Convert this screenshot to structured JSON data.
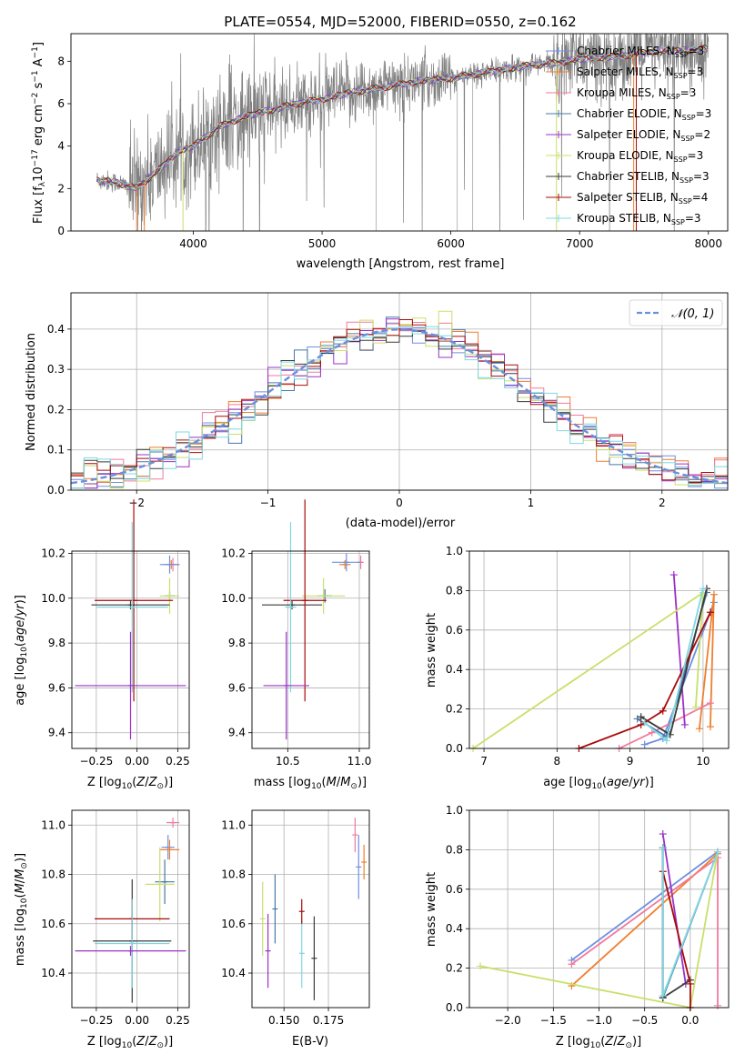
{
  "title": "PLATE=0554, MJD=52000, FIBERID=0550, z=0.162",
  "colors": {
    "grid": "#b0b0b0",
    "data": "#808080",
    "series": [
      "#6f8fe0",
      "#ef7f2e",
      "#f07a9c",
      "#4a78a8",
      "#9b30c8",
      "#c8e06a",
      "#3a3a3a",
      "#a80a0a",
      "#7fd8e0"
    ]
  },
  "spectrum": {
    "ylabel": "Flux [f",
    "ylabel_sub": "λ",
    "ylabel_rest": "10",
    "ylabel_sup": "−17",
    "ylabel_units": " erg cm",
    "ylabel_sup2": "−2",
    "ylabel_units2": " s",
    "ylabel_sup3": "−1",
    "ylabel_units3": " A",
    "ylabel_sup4": "−1",
    "ylabel_end": "]",
    "xlabel": "wavelength [Angstrom, rest frame]",
    "legend": [
      {
        "name": "Chabrier MILES",
        "n": "3"
      },
      {
        "name": "Salpeter MILES",
        "n": "3"
      },
      {
        "name": "Kroupa MILES",
        "n": "3"
      },
      {
        "name": "Chabrier ELODIE",
        "n": "3"
      },
      {
        "name": "Salpeter ELODIE",
        "n": "2"
      },
      {
        "name": "Kroupa ELODIE",
        "n": "3"
      },
      {
        "name": "Chabrier STELIB",
        "n": "3"
      },
      {
        "name": "Salpeter STELIB",
        "n": "4"
      },
      {
        "name": "Kroupa STELIB",
        "n": "3"
      }
    ],
    "legend_nssp": "N",
    "legend_nssp_sub": "SSP",
    "legend_eq": "="
  },
  "residuals": {
    "ylabel": "Normed distribution",
    "xlabel": "(data-model)/error",
    "legend": "𝒩(0, 1)"
  },
  "panels": {
    "age_z": {
      "xlabel": "Z [log",
      "ylabel": "age  [log",
      "sub": "10"
    },
    "age_mass": {
      "xlabel": "mass [log"
    },
    "weight_age": {
      "ylabel": "mass weight",
      "xlabel": "age  [log"
    },
    "mass_z": {
      "ylabel": "mass [log"
    },
    "mass_ebv": {
      "xlabel": "E(B-V)"
    },
    "weight_z": {
      "ylabel": "mass weight"
    }
  },
  "chart_data": [
    {
      "type": "line",
      "id": "spectrum",
      "title": "PLATE=0554, MJD=52000, FIBERID=0550, z=0.162",
      "xlabel": "wavelength [Angstrom, rest frame]",
      "xlim": [
        3050,
        8150
      ],
      "ylim": [
        0,
        9.3
      ],
      "xticks": [
        4000,
        5000,
        6000,
        7000,
        8000
      ],
      "yticks": [
        0,
        2,
        4,
        6,
        8
      ],
      "grid": false,
      "legend_position": "upper-right",
      "continuum": [
        [
          3250,
          2.4
        ],
        [
          3400,
          2.3
        ],
        [
          3550,
          2.0
        ],
        [
          3700,
          2.7
        ],
        [
          3800,
          3.3
        ],
        [
          3900,
          3.8
        ],
        [
          4000,
          4.0
        ],
        [
          4200,
          4.9
        ],
        [
          4400,
          5.4
        ],
        [
          4600,
          5.7
        ],
        [
          4800,
          6.0
        ],
        [
          5000,
          6.2
        ],
        [
          5200,
          6.5
        ],
        [
          5400,
          6.7
        ],
        [
          5600,
          6.9
        ],
        [
          5800,
          7.1
        ],
        [
          6000,
          7.2
        ],
        [
          6200,
          7.4
        ],
        [
          6400,
          7.6
        ],
        [
          6600,
          7.8
        ],
        [
          6800,
          7.9
        ],
        [
          7000,
          8.1
        ],
        [
          7200,
          8.2
        ],
        [
          7400,
          8.3
        ],
        [
          7600,
          8.5
        ],
        [
          7800,
          8.5
        ],
        [
          8000,
          8.6
        ]
      ],
      "data_range": [
        3250,
        8000
      ]
    },
    {
      "type": "line",
      "id": "residuals",
      "xlabel": "(data-model)/error",
      "ylabel": "Normed distribution",
      "xlim": [
        -2.5,
        2.5
      ],
      "ylim": [
        0,
        0.49
      ],
      "xticks": [
        -2,
        -1,
        0,
        1,
        2
      ],
      "yticks": [
        0.0,
        0.1,
        0.2,
        0.3,
        0.4
      ],
      "grid": true,
      "legend_position": "upper-right",
      "series": [
        {
          "name": "𝒩(0, 1)",
          "function": "normal_pdf",
          "mu": 0,
          "sigma": 1
        }
      ],
      "histogram_bin_width": 0.1
    },
    {
      "type": "scatter",
      "id": "age_vs_Z",
      "xlim": [
        -0.4,
        0.32
      ],
      "ylim": [
        9.33,
        10.21
      ],
      "xticks": [
        -0.25,
        0.0,
        0.25
      ],
      "yticks": [
        9.4,
        9.6,
        9.8,
        10.0,
        10.2
      ],
      "points": [
        {
          "c": 1,
          "x": 0.21,
          "y": 10.15,
          "xe": 0.05,
          "ye": 0.02
        },
        {
          "c": 2,
          "x": 0.22,
          "y": 10.15,
          "xe": 0.04,
          "ye": 0.03
        },
        {
          "c": 0,
          "x": 0.2,
          "y": 10.15,
          "xe": 0.06,
          "ye": 0.04
        },
        {
          "c": 3,
          "x": 0.2,
          "y": 10.01,
          "xe": 0.03,
          "ye": 0.02
        },
        {
          "c": 5,
          "x": 0.2,
          "y": 10.01,
          "xe": 0.06,
          "ye": 0.08
        },
        {
          "c": 6,
          "x": -0.04,
          "y": 9.97,
          "xe": 0.24,
          "ye": 0.02
        },
        {
          "c": 7,
          "x": -0.02,
          "y": 9.99,
          "xe": 0.24,
          "ye": 0.45
        },
        {
          "c": 8,
          "x": -0.03,
          "y": 9.96,
          "xe": 0.22,
          "ye": 0.38
        },
        {
          "c": 4,
          "x": -0.04,
          "y": 9.61,
          "xe": 0.34,
          "ye": 0.24
        }
      ]
    },
    {
      "type": "scatter",
      "id": "age_vs_mass",
      "xlim": [
        10.25,
        11.07
      ],
      "ylim": [
        9.33,
        10.21
      ],
      "xticks": [
        10.5,
        11.0
      ],
      "yticks": [
        9.4,
        9.6,
        9.8,
        10.0,
        10.2
      ],
      "points": [
        {
          "c": 2,
          "x": 11.01,
          "y": 10.16,
          "xe": 0.02,
          "ye": 0.03
        },
        {
          "c": 1,
          "x": 10.9,
          "y": 10.15,
          "xe": 0.04,
          "ye": 0.02
        },
        {
          "c": 0,
          "x": 10.91,
          "y": 10.16,
          "xe": 0.1,
          "ye": 0.04
        },
        {
          "c": 3,
          "x": 10.76,
          "y": 10.01,
          "xe": 0.05,
          "ye": 0.03
        },
        {
          "c": 5,
          "x": 10.75,
          "y": 10.01,
          "xe": 0.15,
          "ye": 0.08
        },
        {
          "c": 6,
          "x": 10.53,
          "y": 9.97,
          "xe": 0.21,
          "ye": 0.02
        },
        {
          "c": 7,
          "x": 10.62,
          "y": 9.99,
          "xe": 0.15,
          "ye": 0.45
        },
        {
          "c": 8,
          "x": 10.52,
          "y": 9.96,
          "xe": 0.04,
          "ye": 0.38
        },
        {
          "c": 4,
          "x": 10.49,
          "y": 9.61,
          "xe": 0.16,
          "ye": 0.24
        }
      ]
    },
    {
      "type": "line",
      "id": "weight_vs_age",
      "ylabel": "mass weight",
      "xlim": [
        6.8,
        10.35
      ],
      "ylim": [
        0,
        1
      ],
      "xticks": [
        7,
        8,
        9,
        10
      ],
      "yticks": [
        0.0,
        0.2,
        0.4,
        0.6,
        0.8,
        1.0
      ],
      "grid": true,
      "series": [
        {
          "c": 0,
          "points": [
            [
              9.2,
              0.02
            ],
            [
              9.45,
              0.05
            ],
            [
              10.15,
              0.74
            ]
          ]
        },
        {
          "c": 1,
          "points": [
            [
              9.95,
              0.1
            ],
            [
              10.15,
              0.78
            ],
            [
              10.1,
              0.11
            ]
          ]
        },
        {
          "c": 2,
          "points": [
            [
              8.85,
              0.0
            ],
            [
              9.3,
              0.08
            ],
            [
              10.1,
              0.23
            ]
          ]
        },
        {
          "c": 3,
          "points": [
            [
              9.1,
              0.15
            ],
            [
              9.5,
              0.06
            ],
            [
              10.05,
              0.79
            ]
          ]
        },
        {
          "c": 4,
          "points": [
            [
              9.6,
              0.88
            ],
            [
              9.75,
              0.12
            ]
          ]
        },
        {
          "c": 5,
          "points": [
            [
              6.85,
              0.0
            ],
            [
              10.0,
              0.79
            ],
            [
              9.9,
              0.21
            ]
          ]
        },
        {
          "c": 6,
          "points": [
            [
              9.15,
              0.16
            ],
            [
              9.55,
              0.07
            ],
            [
              10.05,
              0.81
            ]
          ]
        },
        {
          "c": 7,
          "points": [
            [
              8.3,
              0.0
            ],
            [
              9.15,
              0.12
            ],
            [
              9.45,
              0.19
            ],
            [
              10.1,
              0.69
            ]
          ]
        },
        {
          "c": 8,
          "points": [
            [
              9.2,
              0.13
            ],
            [
              9.5,
              0.04
            ],
            [
              10.0,
              0.81
            ]
          ]
        }
      ]
    },
    {
      "type": "scatter",
      "id": "mass_vs_Z",
      "xlim": [
        -0.4,
        0.32
      ],
      "ylim": [
        10.26,
        11.06
      ],
      "xticks": [
        -0.25,
        0.0,
        0.25
      ],
      "yticks": [
        10.4,
        10.6,
        10.8,
        11.0
      ],
      "points": [
        {
          "c": 2,
          "x": 0.22,
          "y": 11.01,
          "xe": 0.04,
          "ye": 0.02
        },
        {
          "c": 0,
          "x": 0.19,
          "y": 10.91,
          "xe": 0.04,
          "ye": 0.05
        },
        {
          "c": 1,
          "x": 0.2,
          "y": 10.9,
          "xe": 0.06,
          "ye": 0.04
        },
        {
          "c": 3,
          "x": 0.17,
          "y": 10.77,
          "xe": 0.06,
          "ye": 0.09
        },
        {
          "c": 5,
          "x": 0.14,
          "y": 10.76,
          "xe": 0.09,
          "ye": 0.15
        },
        {
          "c": 6,
          "x": -0.03,
          "y": 10.53,
          "xe": 0.24,
          "ye": 0.25
        },
        {
          "c": 7,
          "x": -0.03,
          "y": 10.62,
          "xe": 0.23,
          "ye": 0.08
        },
        {
          "c": 8,
          "x": -0.03,
          "y": 10.52,
          "xe": 0.23,
          "ye": 0.18
        },
        {
          "c": 4,
          "x": -0.04,
          "y": 10.49,
          "xe": 0.34,
          "ye": 0.02
        }
      ]
    },
    {
      "type": "scatter",
      "id": "mass_vs_EBV",
      "xlim": [
        0.132,
        0.198
      ],
      "ylim": [
        10.26,
        11.06
      ],
      "xticks": [
        0.15,
        0.175
      ],
      "yticks": [
        10.4,
        10.6,
        10.8,
        11.0
      ],
      "points": [
        {
          "c": 2,
          "x": 0.19,
          "y": 10.96,
          "xe": 0.0,
          "ye": 0.07
        },
        {
          "c": 0,
          "x": 0.192,
          "y": 10.83,
          "xe": 0.0,
          "ye": 0.13
        },
        {
          "c": 1,
          "x": 0.195,
          "y": 10.85,
          "xe": 0.0,
          "ye": 0.07
        },
        {
          "c": 5,
          "x": 0.138,
          "y": 10.62,
          "xe": 0.0,
          "ye": 0.15
        },
        {
          "c": 4,
          "x": 0.141,
          "y": 10.49,
          "xe": 0.0,
          "ye": 0.15
        },
        {
          "c": 3,
          "x": 0.145,
          "y": 10.66,
          "xe": 0.0,
          "ye": 0.14
        },
        {
          "c": 8,
          "x": 0.16,
          "y": 10.48,
          "xe": 0.0,
          "ye": 0.14
        },
        {
          "c": 7,
          "x": 0.16,
          "y": 10.65,
          "xe": 0.0,
          "ye": 0.05
        },
        {
          "c": 6,
          "x": 0.167,
          "y": 10.46,
          "xe": 0.0,
          "ye": 0.17
        }
      ]
    },
    {
      "type": "line",
      "id": "weight_vs_Z",
      "ylabel": "mass weight",
      "xlim": [
        -2.42,
        0.42
      ],
      "ylim": [
        0,
        1
      ],
      "xticks": [
        -2.0,
        -1.5,
        -1.0,
        -0.5,
        0.0
      ],
      "yticks": [
        0.0,
        0.2,
        0.4,
        0.6,
        0.8,
        1.0
      ],
      "grid": true,
      "series": [
        {
          "c": 0,
          "points": [
            [
              -1.3,
              0.24
            ],
            [
              0.3,
              0.79
            ]
          ]
        },
        {
          "c": 1,
          "points": [
            [
              -1.3,
              0.11
            ],
            [
              0.3,
              0.78
            ]
          ]
        },
        {
          "c": 2,
          "points": [
            [
              -1.3,
              0.22
            ],
            [
              0.3,
              0.76
            ],
            [
              0.3,
              0.01
            ]
          ]
        },
        {
          "c": 3,
          "points": [
            [
              -0.3,
              0.81
            ],
            [
              -0.3,
              0.05
            ],
            [
              0.3,
              0.79
            ]
          ]
        },
        {
          "c": 4,
          "points": [
            [
              -0.3,
              0.88
            ],
            [
              -0.05,
              0.12
            ]
          ]
        },
        {
          "c": 5,
          "points": [
            [
              -2.3,
              0.21
            ],
            [
              0.0,
              0.0
            ],
            [
              0.3,
              0.79
            ]
          ]
        },
        {
          "c": 6,
          "points": [
            [
              -0.3,
              0.81
            ],
            [
              -0.3,
              0.05
            ],
            [
              0.0,
              0.14
            ]
          ]
        },
        {
          "c": 7,
          "points": [
            [
              -0.3,
              0.69
            ],
            [
              0.0,
              0.12
            ],
            [
              0.0,
              0.0
            ]
          ]
        },
        {
          "c": 8,
          "points": [
            [
              -0.3,
              0.81
            ],
            [
              -0.3,
              0.06
            ],
            [
              0.3,
              0.79
            ]
          ]
        }
      ]
    }
  ]
}
